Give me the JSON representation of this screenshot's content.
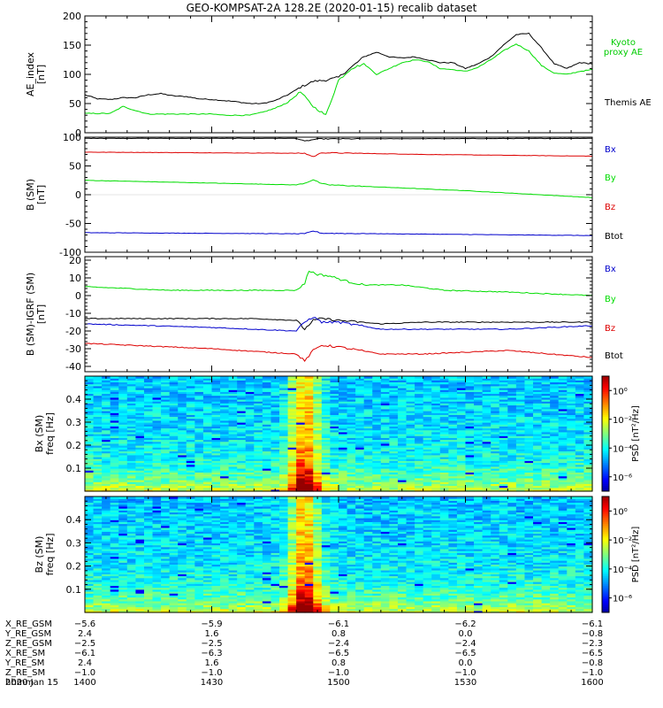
{
  "title": "GEO-KOMPSAT-2A 128.2E (2020-01-15) recalib dataset",
  "colors": {
    "black": "#000000",
    "green": "#00dd00",
    "red": "#dd0000",
    "blue": "#0000cc",
    "legend_green": "#00cc00"
  },
  "x_axis": {
    "start_min": 0,
    "end_min": 120,
    "start_label": "1400",
    "end_label": "1600"
  },
  "chart_data": [
    {
      "type": "line",
      "id": "ae",
      "ylabel": "AE_index\n[nT]",
      "ylim": [
        0,
        200
      ],
      "yticks": [
        0,
        50,
        100,
        150,
        200
      ],
      "legend": [
        {
          "name": "Kyoto\nproxy AE",
          "color": "green"
        },
        {
          "name": "Themis AE",
          "color": "black"
        }
      ],
      "series": [
        {
          "name": "Themis AE",
          "color": "black",
          "x": [
            0,
            3,
            6,
            9,
            12,
            15,
            18,
            21,
            24,
            27,
            30,
            33,
            36,
            39,
            42,
            45,
            48,
            51,
            54,
            57,
            60,
            63,
            66,
            69,
            72,
            75,
            78,
            81,
            84,
            87,
            90,
            93,
            96,
            99,
            102,
            105,
            108,
            111,
            114,
            117,
            120
          ],
          "y": [
            65,
            58,
            57,
            60,
            60,
            65,
            67,
            63,
            62,
            58,
            57,
            55,
            53,
            50,
            50,
            55,
            65,
            78,
            88,
            90,
            95,
            112,
            130,
            138,
            130,
            128,
            130,
            125,
            120,
            120,
            110,
            118,
            130,
            150,
            168,
            170,
            145,
            118,
            110,
            120,
            118
          ]
        },
        {
          "name": "Kyoto proxy AE",
          "color": "green",
          "x": [
            0,
            3,
            6,
            9,
            12,
            15,
            18,
            21,
            24,
            27,
            30,
            33,
            36,
            39,
            42,
            45,
            48,
            51,
            54,
            57,
            60,
            63,
            66,
            69,
            72,
            75,
            78,
            81,
            84,
            87,
            90,
            93,
            96,
            99,
            102,
            105,
            108,
            111,
            114,
            117,
            120
          ],
          "y": [
            33,
            33,
            33,
            45,
            38,
            32,
            32,
            32,
            32,
            32,
            32,
            30,
            30,
            30,
            35,
            42,
            52,
            70,
            45,
            30,
            90,
            110,
            118,
            100,
            110,
            120,
            125,
            122,
            110,
            108,
            105,
            112,
            125,
            140,
            152,
            140,
            115,
            102,
            100,
            105,
            108
          ]
        }
      ]
    },
    {
      "type": "line",
      "id": "b_sm",
      "ylabel": "B (SM)\n[nT]",
      "ylim": [
        -100,
        100
      ],
      "yticks": [
        -100,
        -50,
        0,
        50,
        100
      ],
      "legend": [
        {
          "name": "Bx",
          "color": "blue"
        },
        {
          "name": "By",
          "color": "green"
        },
        {
          "name": "Bz",
          "color": "red"
        },
        {
          "name": "Btot",
          "color": "black"
        }
      ],
      "series": [
        {
          "name": "Btot",
          "color": "black",
          "x": [
            0,
            50,
            52,
            55,
            120
          ],
          "y": [
            98,
            98,
            93,
            97,
            98
          ]
        },
        {
          "name": "Bz",
          "color": "red",
          "x": [
            0,
            52,
            54,
            56,
            80,
            120
          ],
          "y": [
            74,
            72,
            66,
            73,
            70,
            67
          ]
        },
        {
          "name": "By",
          "color": "green",
          "x": [
            0,
            50,
            52,
            54,
            56,
            58,
            90,
            120
          ],
          "y": [
            25,
            17,
            20,
            26,
            19,
            17,
            7,
            -5
          ]
        },
        {
          "name": "Bx",
          "color": "blue",
          "x": [
            0,
            52,
            54,
            56,
            120
          ],
          "y": [
            -66,
            -68,
            -63,
            -67,
            -71
          ]
        }
      ]
    },
    {
      "type": "line",
      "id": "b_igrf",
      "ylabel": "B (SM)-IGRF (SM)\n[nT]",
      "ylim": [
        -43,
        22
      ],
      "yticks": [
        -40,
        -30,
        -20,
        -10,
        0,
        10,
        20
      ],
      "legend": [
        {
          "name": "Bx",
          "color": "blue"
        },
        {
          "name": "By",
          "color": "green"
        },
        {
          "name": "Bz",
          "color": "red"
        },
        {
          "name": "Btot",
          "color": "black"
        }
      ],
      "series": [
        {
          "name": "By",
          "color": "green",
          "x": [
            0,
            20,
            45,
            50,
            52,
            53,
            55,
            58,
            62,
            66,
            70,
            75,
            85,
            100,
            120
          ],
          "y": [
            5,
            3,
            3,
            3,
            7,
            14,
            12,
            11,
            8,
            6,
            6,
            6,
            3,
            2,
            0
          ]
        },
        {
          "name": "Btot",
          "color": "black",
          "x": [
            0,
            40,
            50,
            52,
            54,
            56,
            60,
            70,
            80,
            100,
            120
          ],
          "y": [
            -13,
            -13,
            -14,
            -19,
            -14,
            -13,
            -14,
            -16,
            -15,
            -15,
            -15
          ]
        },
        {
          "name": "Bx",
          "color": "blue",
          "x": [
            0,
            30,
            50,
            52,
            54,
            56,
            60,
            70,
            80,
            100,
            120
          ],
          "y": [
            -16,
            -18,
            -20,
            -15,
            -12,
            -15,
            -15,
            -19,
            -19,
            -19,
            -17
          ]
        },
        {
          "name": "Bz",
          "color": "red",
          "x": [
            0,
            30,
            50,
            52,
            54,
            56,
            60,
            70,
            80,
            100,
            120
          ],
          "y": [
            -27,
            -30,
            -33,
            -37,
            -31,
            -28,
            -29,
            -33,
            -33,
            -31,
            -35
          ]
        }
      ]
    },
    {
      "type": "heatmap",
      "id": "bx_psd",
      "ylabel": "Bx (SM)\nfreq [Hz]",
      "ylim": [
        0,
        0.5
      ],
      "yticks": [
        0.1,
        0.2,
        0.3,
        0.4
      ],
      "colorbar_label": "PSD [nT²/Hz]",
      "colorbar_ticks": [
        "10⁰",
        "10⁻²",
        "10⁻⁴",
        "10⁻⁶"
      ],
      "colorbar_range": [
        -7,
        1
      ],
      "columns": 60,
      "rows": 60,
      "event_min": 52
    },
    {
      "type": "heatmap",
      "id": "bz_psd",
      "ylabel": "Bz (SM)\nfreq [Hz]",
      "ylim": [
        0,
        0.5
      ],
      "yticks": [
        0.1,
        0.2,
        0.3,
        0.4
      ],
      "colorbar_label": "PSD [nT²/Hz]",
      "colorbar_ticks": [
        "10⁰",
        "10⁻²",
        "10⁻⁴",
        "10⁻⁶"
      ],
      "colorbar_range": [
        -7,
        1
      ],
      "columns": 60,
      "rows": 60,
      "event_min": 52
    }
  ],
  "ephemeris": {
    "labels": [
      "X_RE_GSM",
      "Y_RE_GSM",
      "Z_RE_GSM",
      "X_RE_SM",
      "Y_RE_SM",
      "Z_RE_SM",
      "hhmm"
    ],
    "columns": [
      {
        "minute": 0,
        "values": [
          "−5.6",
          "2.4",
          "−2.5",
          "−6.1",
          "2.4",
          "−1.0",
          "1400"
        ]
      },
      {
        "minute": 30,
        "values": [
          "−5.9",
          "1.6",
          "−2.5",
          "−6.3",
          "1.6",
          "−1.0",
          "1430"
        ]
      },
      {
        "minute": 60,
        "values": [
          "−6.1",
          "0.8",
          "−2.4",
          "−6.5",
          "0.8",
          "−1.0",
          "1500"
        ]
      },
      {
        "minute": 90,
        "values": [
          "−6.2",
          "0.0",
          "−2.4",
          "−6.5",
          "0.0",
          "−1.0",
          "1530"
        ]
      },
      {
        "minute": 120,
        "values": [
          "−6.1",
          "−0.8",
          "−2.3",
          "−6.5",
          "−0.8",
          "−1.0",
          "1600"
        ]
      }
    ],
    "date": "2020 Jan 15"
  }
}
